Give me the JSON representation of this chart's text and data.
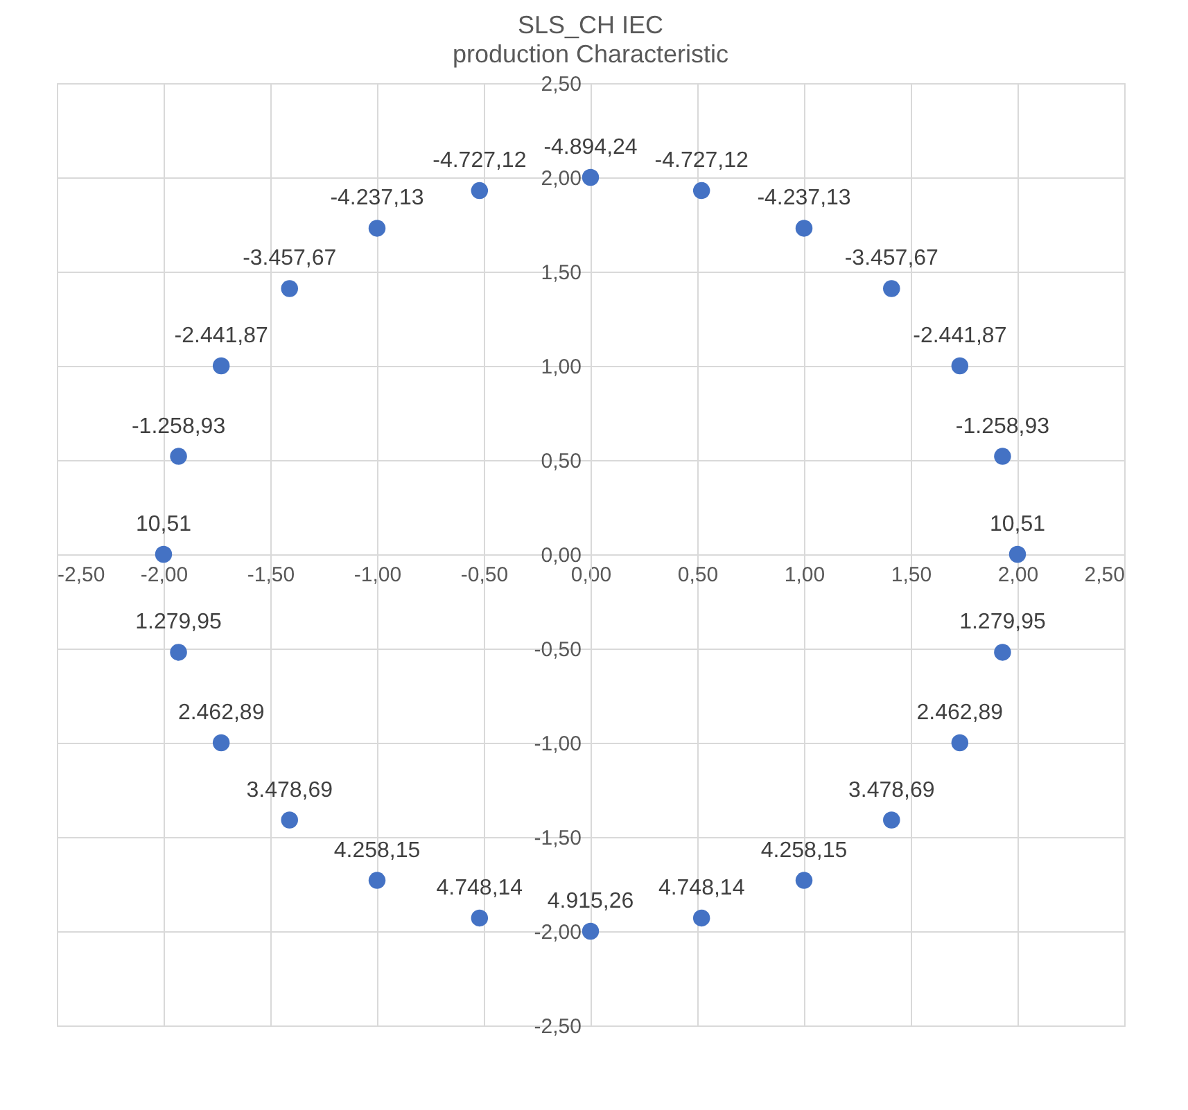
{
  "chart_data": {
    "type": "scatter",
    "title": "SLS_CH IEC",
    "subtitle": "production Characteristic",
    "x": [
      0,
      0.52,
      1.0,
      1.41,
      1.73,
      1.93,
      2.0,
      1.93,
      1.73,
      1.41,
      1.0,
      0.52,
      0,
      -0.52,
      -1.0,
      -1.41,
      -1.73,
      -1.93,
      -2.0,
      -1.93,
      -1.73,
      -1.41,
      -1.0,
      -0.52
    ],
    "series": [
      {
        "color": "#4472c4",
        "values": [
          2.0,
          1.93,
          1.73,
          1.41,
          1.0,
          0.52,
          0.0,
          -0.52,
          -1.0,
          -1.41,
          -1.73,
          -1.93,
          -2.0,
          -1.93,
          -1.73,
          -1.41,
          -1.0,
          -0.52,
          0.0,
          0.52,
          1.0,
          1.41,
          1.73,
          1.93
        ]
      }
    ],
    "annotations": [
      {
        "text": "-4.894,24",
        "x": 0,
        "y": 2.0
      },
      {
        "text": "-4.727,12",
        "x": 0.52,
        "y": 1.93
      },
      {
        "text": "-4.237,13",
        "x": 1.0,
        "y": 1.73
      },
      {
        "text": "-3.457,67",
        "x": 1.41,
        "y": 1.41
      },
      {
        "text": "-2.441,87",
        "x": 1.73,
        "y": 1.0
      },
      {
        "text": "-1.258,93",
        "x": 1.93,
        "y": 0.52
      },
      {
        "text": "10,51",
        "x": 2.0,
        "y": 0.0
      },
      {
        "text": "1.279,95",
        "x": 1.93,
        "y": -0.52
      },
      {
        "text": "2.462,89",
        "x": 1.73,
        "y": -1.0
      },
      {
        "text": "3.478,69",
        "x": 1.41,
        "y": -1.41
      },
      {
        "text": "4.258,15",
        "x": 1.0,
        "y": -1.73
      },
      {
        "text": "4.748,14",
        "x": 0.52,
        "y": -1.93
      },
      {
        "text": "4.915,26",
        "x": 0,
        "y": -2.0
      },
      {
        "text": "4.748,14",
        "x": -0.52,
        "y": -1.93
      },
      {
        "text": "4.258,15",
        "x": -1.0,
        "y": -1.73
      },
      {
        "text": "3.478,69",
        "x": -1.41,
        "y": -1.41
      },
      {
        "text": "2.462,89",
        "x": -1.73,
        "y": -1.0
      },
      {
        "text": "1.279,95",
        "x": -1.93,
        "y": -0.52
      },
      {
        "text": "10,51",
        "x": -2.0,
        "y": 0.0
      },
      {
        "text": "-1.258,93",
        "x": -1.93,
        "y": 0.52
      },
      {
        "text": "-2.441,87",
        "x": -1.73,
        "y": 1.0
      },
      {
        "text": "-3.457,67",
        "x": -1.41,
        "y": 1.41
      },
      {
        "text": "-4.237,13",
        "x": -1.0,
        "y": 1.73
      },
      {
        "text": "-4.727,12",
        "x": -0.52,
        "y": 1.93
      }
    ],
    "xlim": [
      -2.5,
      2.5
    ],
    "ylim": [
      -2.5,
      2.5
    ],
    "xticks": [
      {
        "value": -2.5,
        "label": "-2,50"
      },
      {
        "value": -2,
        "label": "-2,00"
      },
      {
        "value": -1.5,
        "label": "-1,50"
      },
      {
        "value": -1,
        "label": "-1,00"
      },
      {
        "value": -0.5,
        "label": "-0,50"
      },
      {
        "value": 0,
        "label": "0,00"
      },
      {
        "value": 0.5,
        "label": "0,50"
      },
      {
        "value": 1,
        "label": "1,00"
      },
      {
        "value": 1.5,
        "label": "1,50"
      },
      {
        "value": 2,
        "label": "2,00"
      },
      {
        "value": 2.5,
        "label": "2,50"
      }
    ],
    "yticks": [
      {
        "value": -2.5,
        "label": "-2,50"
      },
      {
        "value": -2,
        "label": "-2,00"
      },
      {
        "value": -1.5,
        "label": "-1,50"
      },
      {
        "value": -1,
        "label": "-1,00"
      },
      {
        "value": -0.5,
        "label": "-0,50"
      },
      {
        "value": 0,
        "label": "0,00"
      },
      {
        "value": 0.5,
        "label": "0,50"
      },
      {
        "value": 1,
        "label": "1,00"
      },
      {
        "value": 1.5,
        "label": "1,50"
      },
      {
        "value": 2,
        "label": "2,00"
      },
      {
        "value": 2.5,
        "label": "2,50"
      }
    ],
    "grid": true,
    "marker": "circle"
  }
}
